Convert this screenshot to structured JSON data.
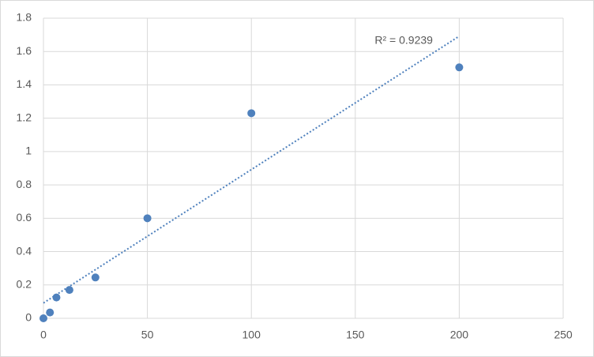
{
  "chart_data": {
    "type": "scatter",
    "x": [
      0,
      3.125,
      6.25,
      12.5,
      25,
      50,
      100,
      200
    ],
    "values": [
      0,
      0.035,
      0.125,
      0.17,
      0.245,
      0.6,
      1.23,
      1.505
    ],
    "color": "#4f81bd",
    "trendline": "linear",
    "annotation": "R² = 0.9239",
    "xlim": [
      0,
      250
    ],
    "xticks": [
      0,
      50,
      100,
      150,
      200,
      250
    ],
    "ylim": [
      0,
      1.8
    ],
    "yticks": [
      0,
      0.2,
      0.4,
      0.6,
      0.8,
      1,
      1.2,
      1.4,
      1.6,
      1.8
    ],
    "grid": true
  }
}
